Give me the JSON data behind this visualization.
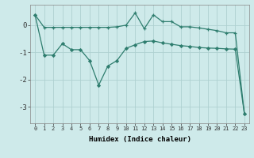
{
  "xlabel": "Humidex (Indice chaleur)",
  "background_color": "#ceeaea",
  "grid_color": "#aed0d0",
  "line_color": "#2e7d6e",
  "x_ticks": [
    0,
    1,
    2,
    3,
    4,
    5,
    6,
    7,
    8,
    9,
    10,
    11,
    12,
    13,
    14,
    15,
    16,
    17,
    18,
    19,
    20,
    21,
    22,
    23
  ],
  "ylim": [
    -3.6,
    0.75
  ],
  "yticks": [
    0,
    -1,
    -2,
    -3
  ],
  "line1_x": [
    0,
    1,
    2,
    3,
    4,
    5,
    6,
    7,
    8,
    9,
    10,
    11,
    12,
    13,
    14,
    15,
    16,
    17,
    18,
    19,
    20,
    21,
    22,
    23
  ],
  "line1_y": [
    0.38,
    -0.08,
    -0.08,
    -0.08,
    -0.08,
    -0.08,
    -0.08,
    -0.08,
    -0.08,
    -0.06,
    0.0,
    0.45,
    -0.13,
    0.38,
    0.13,
    0.13,
    -0.06,
    -0.06,
    -0.1,
    -0.15,
    -0.2,
    -0.28,
    -0.28,
    -3.25
  ],
  "line2_x": [
    0,
    1,
    2,
    3,
    4,
    5,
    6,
    7,
    8,
    9,
    10,
    11,
    12,
    13,
    14,
    15,
    16,
    17,
    18,
    19,
    20,
    21,
    22,
    23
  ],
  "line2_y": [
    0.38,
    -1.1,
    -1.1,
    -0.68,
    -0.9,
    -0.9,
    -1.3,
    -2.2,
    -1.5,
    -1.3,
    -0.85,
    -0.72,
    -0.6,
    -0.58,
    -0.65,
    -0.7,
    -0.75,
    -0.78,
    -0.82,
    -0.84,
    -0.85,
    -0.87,
    -0.88,
    -3.25
  ]
}
